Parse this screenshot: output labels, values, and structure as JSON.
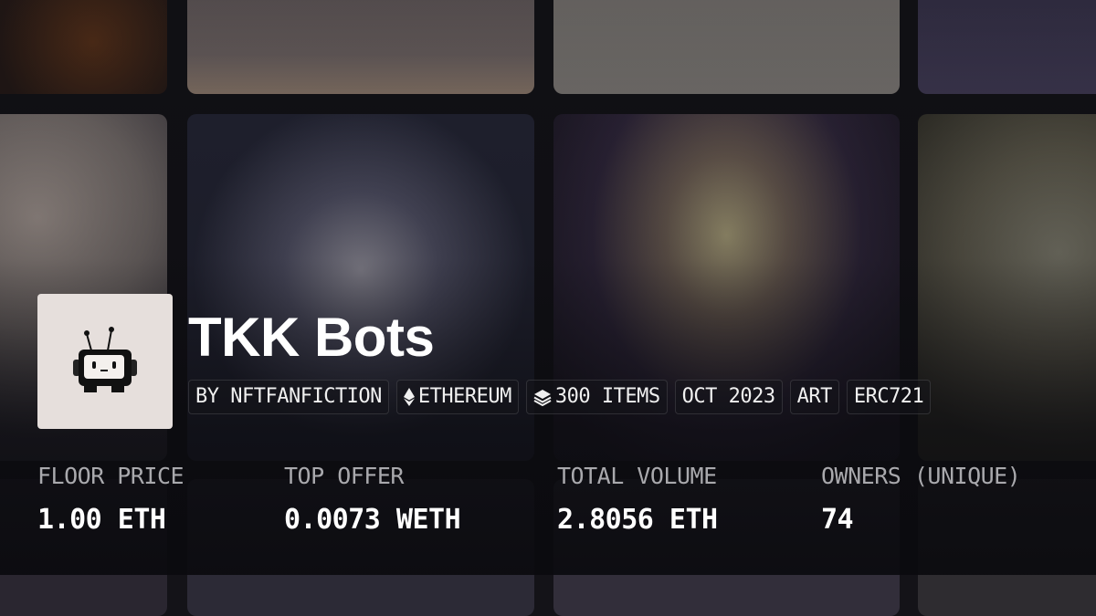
{
  "collection": {
    "title": "TKK Bots",
    "tags": [
      {
        "label": "BY NFTFANFICTION",
        "icon": null
      },
      {
        "label": "ETHEREUM",
        "icon": "ethereum-icon"
      },
      {
        "label": "300 ITEMS",
        "icon": "layers-icon"
      },
      {
        "label": "OCT 2023",
        "icon": null
      },
      {
        "label": "ART",
        "icon": null
      },
      {
        "label": "ERC721",
        "icon": null
      }
    ]
  },
  "stats": [
    {
      "label": "FLOOR PRICE",
      "value": "1.00 ETH"
    },
    {
      "label": "TOP OFFER",
      "value": "0.0073 WETH"
    },
    {
      "label": "TOTAL VOLUME",
      "value": "2.8056 ETH"
    },
    {
      "label": "OWNERS (UNIQUE)",
      "value": "74"
    }
  ]
}
